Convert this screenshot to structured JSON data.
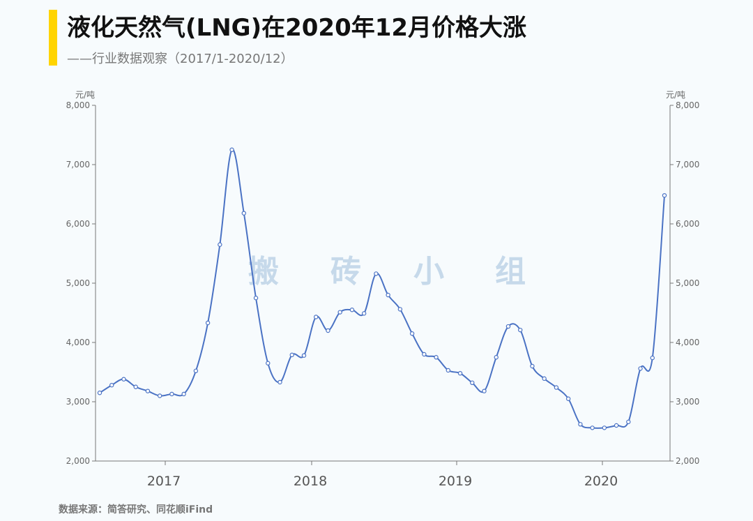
{
  "header": {
    "title": "液化天然气(LNG)在2020年12月价格大涨",
    "subtitle": "——行业数据观察（2017/1-2020/12）",
    "accent_color": "#ffd400"
  },
  "footer": {
    "source": "数据来源：简答研究、同花顺iFind"
  },
  "watermark": {
    "chars": [
      "搬",
      "砖",
      "小",
      "组"
    ],
    "color": "#c6d9ea"
  },
  "chart_data": {
    "type": "line",
    "title": "液化天然气(LNG)在2020年12月价格大涨",
    "subtitle": "——行业数据观察（2017/1-2020/12）",
    "unit_left": "元/吨",
    "unit_right": "元/吨",
    "ylim": [
      2000,
      8000
    ],
    "y_ticks": [
      2000,
      3000,
      4000,
      5000,
      6000,
      7000,
      8000
    ],
    "y_tick_labels": [
      "2,000",
      "3,000",
      "4,000",
      "5,000",
      "6,000",
      "7,000",
      "8,000"
    ],
    "x_labels": [
      "2017",
      "2018",
      "2019",
      "2020"
    ],
    "x_label_positions": [
      4.5,
      14.5,
      24.5,
      34.5
    ],
    "year_boundaries": [
      4.5,
      14.5,
      24.5,
      34.5
    ],
    "xlim": [
      0,
      38
    ],
    "line_color": "#4a72c4",
    "series": [
      {
        "values": [
          3150,
          3280,
          3380,
          3250,
          3180,
          3100,
          3130,
          3130,
          3520,
          4330,
          5650,
          7250,
          6180,
          4750,
          3650,
          3330,
          3790,
          3780,
          4430,
          4200,
          4510,
          4550,
          4490,
          5160,
          4800,
          4560,
          4150,
          3800,
          3750,
          3530,
          3480,
          3320,
          3180,
          3750,
          4270,
          4210,
          3600,
          3390,
          3240,
          3050,
          2620,
          2560,
          2560,
          2600,
          2660,
          3560,
          3740,
          6480
        ]
      }
    ],
    "grid": false,
    "legend": "none"
  }
}
